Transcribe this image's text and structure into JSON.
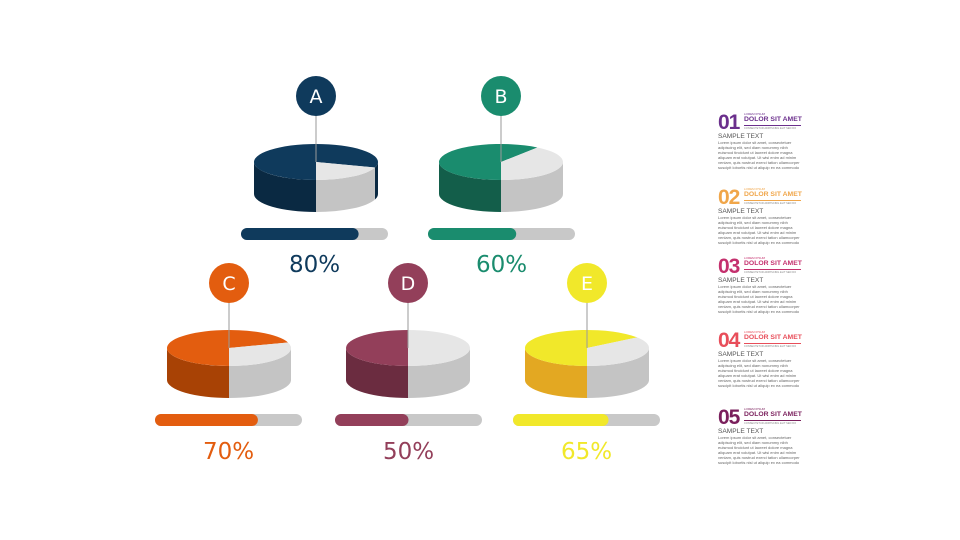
{
  "items": [
    {
      "letter": "A",
      "percent_label": "80%",
      "value": 0.8,
      "color": "#0f3a5c",
      "dark": "#0a2942"
    },
    {
      "letter": "B",
      "percent_label": "60%",
      "value": 0.6,
      "color": "#1a8c6e",
      "dark": "#135e4a"
    },
    {
      "letter": "C",
      "percent_label": "70%",
      "value": 0.7,
      "color": "#e35d0f",
      "dark": "#a84205"
    },
    {
      "letter": "D",
      "percent_label": "50%",
      "value": 0.5,
      "color": "#933f5a",
      "dark": "#6b2c40"
    },
    {
      "letter": "E",
      "percent_label": "65%",
      "value": 0.65,
      "color": "#f1e82a",
      "dark": "#e3a822"
    }
  ],
  "colors": {
    "track": "#c8c8c8",
    "pie_rest_top": "#e6e6e6",
    "pie_rest_side": "#c4c4c4"
  },
  "panel": [
    {
      "number": "01",
      "tiny": "LOREM IPSUM",
      "heading": "DOLOR SIT AMET",
      "tiny2": "CONSECTETUR ADIPISCING ELIT SED DO",
      "sample": "SAMPLE TEXT",
      "body": "Lorem ipsum dolor sit amet, consectetuer adipiscing elit, sed diam nonummy nibh euismod tincidunt ut laoreet dolore magna aliquam erat volutpat. Ut wisi enim ad minim veniam, quis nostrud exerci tation ullamcorper suscipit lobortis nisl ut aliquip ex ea commodo",
      "color": "#6b2f8c"
    },
    {
      "number": "02",
      "tiny": "LOREM IPSUM",
      "heading": "DOLOR SIT AMET",
      "tiny2": "CONSECTETUR ADIPISCING ELIT SED DO",
      "sample": "SAMPLE TEXT",
      "body": "Lorem ipsum dolor sit amet, consectetuer adipiscing elit, sed diam nonummy nibh euismod tincidunt ut laoreet dolore magna aliquam erat volutpat. Ut wisi enim ad minim veniam, quis nostrud exerci tation ullamcorper suscipit lobortis nisl ut aliquip ex ea commodo",
      "color": "#f0a64a"
    },
    {
      "number": "03",
      "tiny": "LOREM IPSUM",
      "heading": "DOLOR SIT AMET",
      "tiny2": "CONSECTETUR ADIPISCING ELIT SED DO",
      "sample": "SAMPLE TEXT",
      "body": "Lorem ipsum dolor sit amet, consectetuer adipiscing elit, sed diam nonummy nibh euismod tincidunt ut laoreet dolore magna aliquam erat volutpat. Ut wisi enim ad minim veniam, quis nostrud exerci tation ullamcorper suscipit lobortis nisl ut aliquip ex ea commodo",
      "color": "#c4306d"
    },
    {
      "number": "04",
      "tiny": "LOREM IPSUM",
      "heading": "DOLOR SIT AMET",
      "tiny2": "CONSECTETUR ADIPISCING ELIT SED DO",
      "sample": "SAMPLE TEXT",
      "body": "Lorem ipsum dolor sit amet, consectetuer adipiscing elit, sed diam nonummy nibh euismod tincidunt ut laoreet dolore magna aliquam erat volutpat. Ut wisi enim ad minim veniam, quis nostrud exerci tation ullamcorper suscipit lobortis nisl ut aliquip ex ea commodo",
      "color": "#e84e5a"
    },
    {
      "number": "05",
      "tiny": "LOREM IPSUM",
      "heading": "DOLOR SIT AMET",
      "tiny2": "CONSECTETUR ADIPISCING ELIT SED DO",
      "sample": "SAMPLE TEXT",
      "body": "Lorem ipsum dolor sit amet, consectetuer adipiscing elit, sed diam nonummy nibh euismod tincidunt ut laoreet dolore magna aliquam erat volutpat. Ut wisi enim ad minim veniam, quis nostrud exerci tation ullamcorper suscipit lobortis nisl ut aliquip ex ea commodo",
      "color": "#7a1f5c"
    }
  ]
}
